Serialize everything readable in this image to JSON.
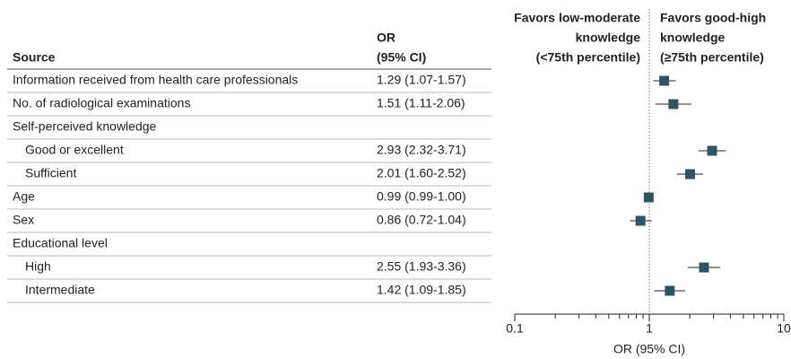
{
  "chart_data": {
    "type": "forest",
    "columns": {
      "source": "Source",
      "or": [
        "OR",
        "(95% CI)"
      ]
    },
    "left_header": [
      "Favors low-moderate",
      "knowledge",
      "(<75th percentile)"
    ],
    "right_header": [
      "Favors good-high",
      "knowledge",
      "(≥75th percentile)"
    ],
    "categories": [
      "Information received from health care professionals",
      "No. of radiological examinations",
      "Self-perceived knowledge",
      "Good or excellent",
      "Sufficient",
      "Age",
      "Sex",
      "Educational level",
      "High",
      "Intermediate"
    ],
    "indent": [
      false,
      false,
      false,
      true,
      true,
      false,
      false,
      false,
      true,
      true
    ],
    "values": [
      1.29,
      1.51,
      null,
      2.93,
      2.01,
      0.99,
      0.86,
      null,
      2.55,
      1.42
    ],
    "lower": [
      1.07,
      1.11,
      null,
      2.32,
      1.6,
      0.99,
      0.72,
      null,
      1.93,
      1.09
    ],
    "upper": [
      1.57,
      2.06,
      null,
      3.71,
      2.52,
      1.0,
      1.04,
      null,
      3.36,
      1.85
    ],
    "value_labels": [
      "1.29 (1.07-1.57)",
      "1.51 (1.11-2.06)",
      null,
      "2.93 (2.32-3.71)",
      "2.01 (1.60-2.52)",
      "0.99 (0.99-1.00)",
      "0.86 (0.72-1.04)",
      null,
      "2.55 (1.93-3.36)",
      "1.42 (1.09-1.85)"
    ],
    "color": "#2e5566",
    "xlabel": "OR (95% CI)",
    "xscale": "log",
    "xlim": [
      0.1,
      10
    ],
    "xticks": [
      0.1,
      1,
      10
    ],
    "xminorticks": [
      0.2,
      0.3,
      0.4,
      0.5,
      0.6,
      0.7,
      0.8,
      0.9,
      2,
      3,
      4,
      5,
      6,
      7,
      8,
      9
    ],
    "reference": 1
  }
}
